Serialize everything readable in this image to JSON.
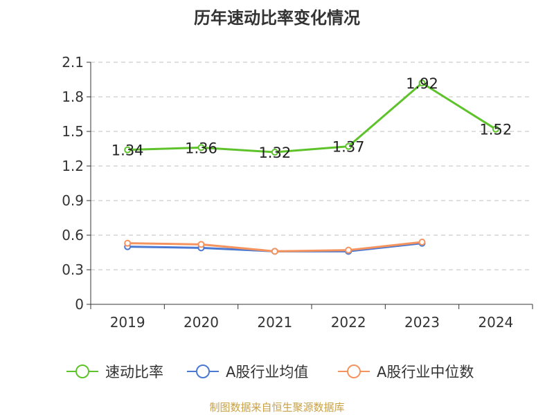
{
  "chart_data": {
    "type": "line",
    "title": "历年速动比率变化情况",
    "categories": [
      "2019",
      "2020",
      "2021",
      "2022",
      "2023",
      "2024"
    ],
    "y_ticks": [
      "0",
      "0.3",
      "0.6",
      "0.9",
      "1.2",
      "1.5",
      "1.8",
      "2.1"
    ],
    "ylim": [
      0,
      2.1
    ],
    "grid": true,
    "legend_position": "bottom",
    "series": [
      {
        "name": "速动比率",
        "color": "#5ec22a",
        "values": [
          1.34,
          1.36,
          1.32,
          1.37,
          1.92,
          1.52
        ],
        "labels": [
          "1.34",
          "1.36",
          "1.32",
          "1.37",
          "1.92",
          "1.52"
        ],
        "show_labels": true
      },
      {
        "name": "A股行业均值",
        "color": "#4a78d2",
        "values": [
          0.5,
          0.49,
          0.46,
          0.46,
          0.53,
          null
        ],
        "show_labels": false
      },
      {
        "name": "A股行业中位数",
        "color": "#f5935f",
        "values": [
          0.53,
          0.52,
          0.46,
          0.47,
          0.54,
          null
        ],
        "show_labels": false
      }
    ],
    "source": "制图数据来自恒生聚源数据库"
  }
}
